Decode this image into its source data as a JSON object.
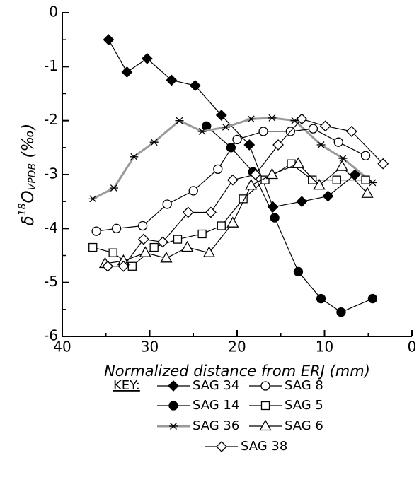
{
  "chart_data": {
    "type": "line",
    "x_label": "Normalized distance from ERJ (mm)",
    "y_label": [
      "δ",
      "18",
      "O",
      "VPDB",
      " (‰)"
    ],
    "legend_title": "KEY:",
    "legend": "bottom",
    "xlim": [
      40,
      0
    ],
    "xticks": [
      40,
      30,
      20,
      10,
      0
    ],
    "ylim": [
      -6,
      0
    ],
    "yticks": [
      0,
      -1,
      -2,
      -3,
      -4,
      -5,
      -6
    ],
    "series": [
      {
        "name": "SAG 34",
        "marker": "diamond",
        "filled": true,
        "color": "#000000",
        "x": [
          34.7,
          32.6,
          30.3,
          27.5,
          24.8,
          21.8,
          18.6,
          15.9,
          12.6,
          9.6,
          6.5
        ],
        "values": [
          -0.5,
          -1.1,
          -0.85,
          -1.25,
          -1.35,
          -1.9,
          -2.45,
          -3.6,
          -3.5,
          -3.4,
          -3.0
        ]
      },
      {
        "name": "SAG 14",
        "marker": "circle",
        "filled": true,
        "color": "#000000",
        "x": [
          23.5,
          20.7,
          18.2,
          15.7,
          13.0,
          10.4,
          8.1,
          4.5
        ],
        "values": [
          -2.1,
          -2.5,
          -2.95,
          -3.8,
          -4.8,
          -5.3,
          -5.55,
          -5.3
        ]
      },
      {
        "name": "SAG 36",
        "marker": "asterisk",
        "filled": false,
        "color": "#999999",
        "x": [
          36.5,
          34.1,
          31.8,
          29.5,
          26.6,
          24.0,
          21.3,
          18.4,
          16.0,
          13.4,
          10.4,
          7.9,
          4.5
        ],
        "values": [
          -3.45,
          -3.25,
          -2.67,
          -2.4,
          -2.0,
          -2.2,
          -2.12,
          -1.97,
          -1.95,
          -2.0,
          -2.45,
          -2.7,
          -3.15
        ]
      },
      {
        "name": "SAG 8",
        "marker": "circle",
        "filled": false,
        "color": "#000000",
        "x": [
          36.1,
          33.8,
          30.8,
          28.0,
          25.0,
          22.2,
          20.0,
          17.0,
          13.9,
          11.3,
          8.4,
          5.3
        ],
        "values": [
          -4.05,
          -4.0,
          -3.95,
          -3.55,
          -3.3,
          -2.9,
          -2.35,
          -2.2,
          -2.2,
          -2.15,
          -2.4,
          -2.65
        ]
      },
      {
        "name": "SAG 5",
        "marker": "square",
        "filled": false,
        "color": "#000000",
        "x": [
          36.5,
          34.2,
          32.0,
          29.5,
          26.8,
          24.0,
          21.8,
          19.3,
          16.8,
          13.8,
          11.4,
          8.6,
          5.3
        ],
        "values": [
          -4.35,
          -4.45,
          -4.7,
          -4.35,
          -4.2,
          -4.1,
          -3.95,
          -3.45,
          -3.1,
          -2.8,
          -3.1,
          -3.1,
          -3.1
        ]
      },
      {
        "name": "SAG 6",
        "marker": "triangle",
        "filled": false,
        "color": "#000000",
        "x": [
          35.1,
          33.0,
          30.5,
          28.1,
          25.7,
          23.2,
          20.5,
          18.4,
          16.0,
          13.0,
          10.6,
          8.0,
          5.1
        ],
        "values": [
          -4.65,
          -4.6,
          -4.45,
          -4.55,
          -4.35,
          -4.45,
          -3.9,
          -3.2,
          -3.0,
          -2.8,
          -3.2,
          -2.85,
          -3.35
        ]
      },
      {
        "name": "SAG 38",
        "marker": "diamond",
        "filled": false,
        "color": "#000000",
        "x": [
          34.8,
          33.0,
          30.7,
          28.5,
          25.6,
          23.0,
          20.5,
          17.9,
          15.3,
          12.6,
          9.9,
          6.9,
          3.3
        ],
        "values": [
          -4.7,
          -4.7,
          -4.2,
          -4.25,
          -3.7,
          -3.7,
          -3.1,
          -3.0,
          -2.45,
          -1.97,
          -2.1,
          -2.2,
          -2.8
        ]
      }
    ]
  }
}
